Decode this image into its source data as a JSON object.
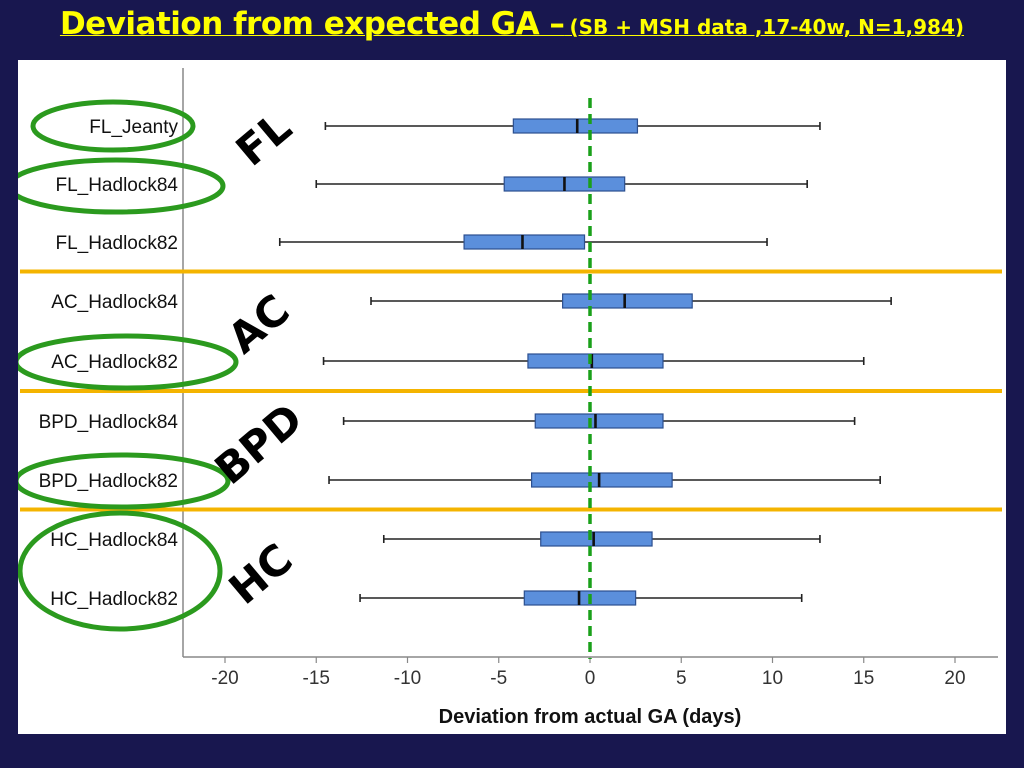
{
  "slide": {
    "title_main": "Deviation from expected GA –",
    "title_sub": "(SB + MSH data ,17-40w, N=1,984)"
  },
  "colors": {
    "background": "#18174f",
    "title": "#ffff00",
    "box_fill": "#5b8fdc",
    "box_stroke": "#2c4f8f",
    "zero_line": "#1aa01a",
    "separator": "#f4b400",
    "highlight_ellipse": "#2b9a1e"
  },
  "chart_data": {
    "type": "boxplot",
    "orientation": "horizontal",
    "xlabel": "Deviation from actual GA (days)",
    "ylabel": "",
    "xlim": [
      -22,
      22
    ],
    "xticks": [
      -20,
      -15,
      -10,
      -5,
      0,
      5,
      10,
      15,
      20
    ],
    "zero_reference_line": 0,
    "rows": [
      {
        "label": "FL_Jeanty",
        "min": -14.5,
        "q1": -4.2,
        "median": -0.7,
        "q3": 2.6,
        "max": 12.6,
        "highlighted": true
      },
      {
        "label": "FL_Hadlock84",
        "min": -15.0,
        "q1": -4.7,
        "median": -1.4,
        "q3": 1.9,
        "max": 11.9,
        "highlighted": true
      },
      {
        "label": "FL_Hadlock82",
        "min": -17.0,
        "q1": -6.9,
        "median": -3.7,
        "q3": -0.3,
        "max": 9.7,
        "highlighted": false
      },
      {
        "label": "AC_Hadlock84",
        "min": -12.0,
        "q1": -1.5,
        "median": 1.9,
        "q3": 5.6,
        "max": 16.5,
        "highlighted": false
      },
      {
        "label": "AC_Hadlock82",
        "min": -14.6,
        "q1": -3.4,
        "median": 0.1,
        "q3": 4.0,
        "max": 15.0,
        "highlighted": true
      },
      {
        "label": "BPD_Hadlock84",
        "min": -13.5,
        "q1": -3.0,
        "median": 0.3,
        "q3": 4.0,
        "max": 14.5,
        "highlighted": false
      },
      {
        "label": "BPD_Hadlock82",
        "min": -14.3,
        "q1": -3.2,
        "median": 0.5,
        "q3": 4.5,
        "max": 15.9,
        "highlighted": true
      },
      {
        "label": "HC_Hadlock84",
        "min": -11.3,
        "q1": -2.7,
        "median": 0.2,
        "q3": 3.4,
        "max": 12.6,
        "highlighted": true
      },
      {
        "label": "HC_Hadlock82",
        "min": -12.6,
        "q1": -3.6,
        "median": -0.6,
        "q3": 2.5,
        "max": 11.6,
        "highlighted": true
      }
    ],
    "groups": [
      {
        "label": "FL",
        "rows": [
          0,
          1,
          2
        ]
      },
      {
        "label": "AC",
        "rows": [
          3,
          4
        ]
      },
      {
        "label": "BPD",
        "rows": [
          5,
          6
        ]
      },
      {
        "label": "HC",
        "rows": [
          7,
          8
        ]
      }
    ]
  }
}
